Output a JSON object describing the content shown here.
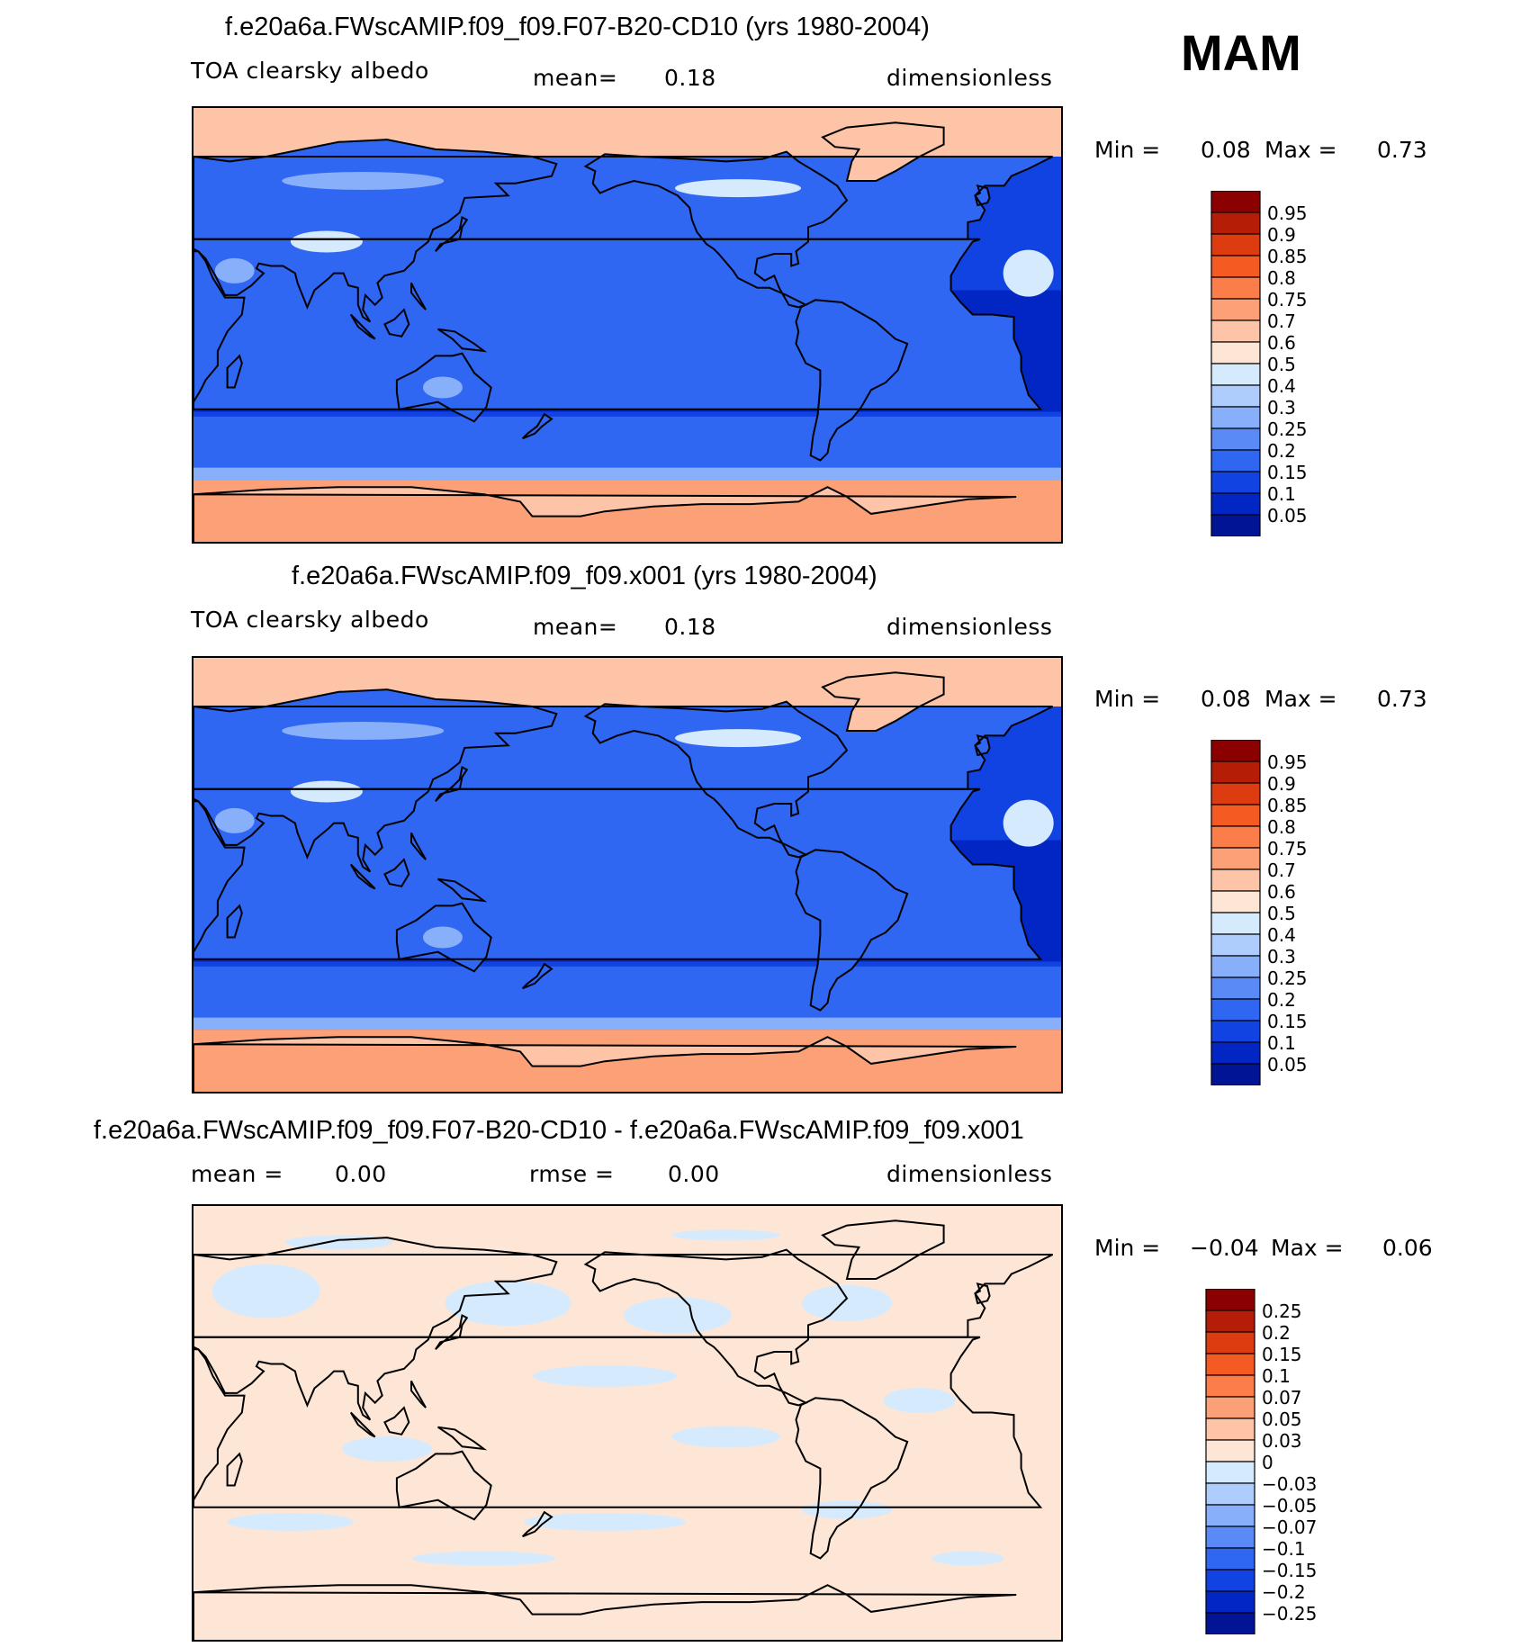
{
  "season": "MAM",
  "panels": [
    {
      "title": "f.e20a6a.FWscAMIP.f09_f09.F07-B20-CD10 (yrs 1980-2004)",
      "left_label": "TOA clearsky albedo",
      "mid_label": "mean=",
      "mid_value": "0.18",
      "right_label": "dimensionless",
      "min_label": "Min =",
      "min_value": "0.08",
      "max_label": "Max =",
      "max_value": "0.73",
      "scale": "abs"
    },
    {
      "title": "f.e20a6a.FWscAMIP.f09_f09.x001 (yrs 1980-2004)",
      "left_label": "TOA clearsky albedo",
      "mid_label": "mean=",
      "mid_value": "0.18",
      "right_label": "dimensionless",
      "min_label": "Min =",
      "min_value": "0.08",
      "max_label": "Max =",
      "max_value": "0.73",
      "scale": "abs"
    },
    {
      "title": "f.e20a6a.FWscAMIP.f09_f09.F07-B20-CD10 - f.e20a6a.FWscAMIP.f09_f09.x001",
      "left_label": "mean =",
      "left_value": "0.00",
      "mid_label": "rmse =",
      "mid_value": "0.00",
      "right_label": "dimensionless",
      "min_label": "Min =",
      "min_value": "−0.04",
      "max_label": "Max =",
      "max_value": "0.06",
      "scale": "diff"
    }
  ],
  "colorbars": {
    "abs": {
      "labels": [
        "0.95",
        "0.9",
        "0.85",
        "0.8",
        "0.75",
        "0.7",
        "0.6",
        "0.5",
        "0.4",
        "0.3",
        "0.25",
        "0.2",
        "0.15",
        "0.1",
        "0.05"
      ],
      "colors": [
        "#8b0000",
        "#b51d06",
        "#dd3b10",
        "#f45a21",
        "#fb7e4a",
        "#fca177",
        "#fdc4a7",
        "#fde6d6",
        "#d6eafe",
        "#aecdfc",
        "#88affa",
        "#5a8af6",
        "#2f66f2",
        "#1142e2",
        "#0226c4",
        "#021496"
      ]
    },
    "diff": {
      "labels": [
        "0.25",
        "0.2",
        "0.15",
        "0.1",
        "0.07",
        "0.05",
        "0.03",
        "0",
        "−0.03",
        "−0.05",
        "−0.07",
        "−0.1",
        "−0.15",
        "−0.2",
        "−0.25"
      ],
      "colors": [
        "#8b0000",
        "#b51d06",
        "#dd3b10",
        "#f45a21",
        "#fb7e4a",
        "#fca177",
        "#fdc4a7",
        "#fde6d6",
        "#d6eafe",
        "#aecdfc",
        "#88affa",
        "#5a8af6",
        "#2f66f2",
        "#1142e2",
        "#0226c4",
        "#021496"
      ]
    }
  },
  "field_colors": {
    "polar_snow": "#fdc4a7",
    "polar_ice": "#fca177",
    "ocean_deep": "#0226c4",
    "ocean_mid": "#1142e2",
    "ocean_band": "#2f66f2",
    "land": "#2f66f2",
    "desert": "#88affa",
    "bright": "#d6eafe",
    "diff_pos": "#fde6d6",
    "diff_neg": "#d6eafe"
  }
}
